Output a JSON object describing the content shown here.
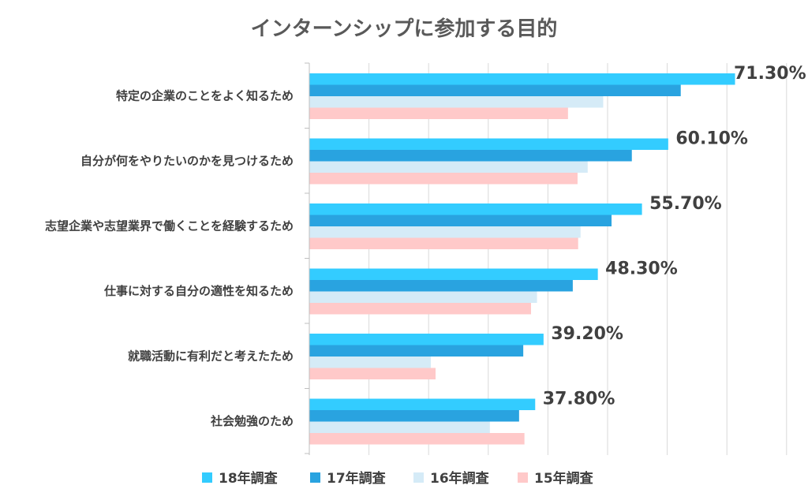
{
  "chart_data": {
    "type": "bar",
    "orientation": "horizontal",
    "title": "インターンシップに参加する目的",
    "categories": [
      "特定の企業のことをよく知るため",
      "自分が何をやりたいのかを見つけるため",
      "志望企業や志望業界で働くことを経験するため",
      "仕事に対する自分の適性を知るため",
      "就職活動に有利だと考えたため",
      "社会勉強のため"
    ],
    "series": [
      {
        "name": "18年調査",
        "color": "#33ccff",
        "values": [
          71.3,
          60.1,
          55.7,
          48.3,
          39.2,
          37.8
        ]
      },
      {
        "name": "17年調査",
        "color": "#29a3e0",
        "values": [
          62.2,
          54.0,
          50.6,
          44.1,
          35.8,
          35.1
        ]
      },
      {
        "name": "16年調査",
        "color": "#d5ebf7",
        "values": [
          49.2,
          46.6,
          45.4,
          38.1,
          20.3,
          30.2
        ]
      },
      {
        "name": "15年調査",
        "color": "#ffc9c9",
        "values": [
          43.3,
          44.9,
          45.0,
          37.1,
          21.1,
          36.0
        ]
      }
    ],
    "value_labels": [
      "71.30%",
      "60.10%",
      "55.70%",
      "48.30%",
      "39.20%",
      "37.80%"
    ],
    "xlim": [
      0,
      80
    ],
    "grid": true,
    "legend_position": "bottom"
  }
}
